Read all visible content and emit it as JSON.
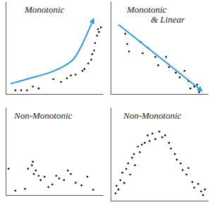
{
  "chart_data": [
    {
      "type": "scatter",
      "title": "Monotonic",
      "xlim": [
        0,
        100
      ],
      "ylim": [
        0,
        100
      ],
      "tick_labels": false,
      "series": [
        {
          "type": "scatter",
          "color": "#000000",
          "marker": "dot",
          "x": [
            10,
            16,
            22,
            28,
            34,
            49,
            57,
            63,
            67,
            72,
            79,
            81,
            85,
            88,
            89,
            91,
            92,
            94,
            96,
            95,
            98
          ],
          "values": [
            4,
            4,
            4,
            8,
            6,
            16,
            13,
            17,
            20,
            21,
            25,
            27,
            33,
            37,
            43,
            47,
            55,
            63,
            67,
            70,
            72
          ]
        },
        {
          "type": "line",
          "color": "#3399cc",
          "marker": "arrow",
          "x": [
            5,
            25,
            45,
            60,
            70,
            78,
            85,
            90
          ],
          "values": [
            11,
            17,
            23,
            30,
            38,
            52,
            68,
            80
          ]
        }
      ]
    },
    {
      "type": "scatter",
      "title": "Monotonic & Linear",
      "xlim": [
        0,
        100
      ],
      "ylim": [
        0,
        100
      ],
      "tick_labels": false,
      "series": [
        {
          "type": "scatter",
          "color": "#000000",
          "marker": "dot",
          "x": [
            15,
            17,
            19,
            31,
            33,
            38,
            46,
            49,
            57,
            60,
            67,
            71,
            76,
            80,
            86,
            91,
            89,
            82
          ],
          "values": [
            65,
            54,
            46,
            56,
            44,
            50,
            40,
            31,
            40,
            29,
            23,
            18,
            25,
            14,
            8,
            2,
            10,
            6
          ]
        },
        {
          "type": "line",
          "color": "#3399cc",
          "marker": "arrow",
          "x": [
            8,
            93
          ],
          "values": [
            75,
            4
          ]
        }
      ]
    },
    {
      "type": "scatter",
      "title": "Non-Monotonic",
      "xlim": [
        0,
        100
      ],
      "ylim": [
        0,
        100
      ],
      "tick_labels": false,
      "series": [
        {
          "type": "scatter",
          "color": "#000000",
          "marker": "dot",
          "x": [
            10,
            20,
            23,
            27,
            28,
            31,
            29,
            34,
            36,
            40,
            44,
            48,
            52,
            55,
            60,
            64,
            67,
            72,
            78,
            84,
            90,
            3
          ],
          "values": [
            5,
            7,
            30,
            34,
            38,
            28,
            24,
            22,
            17,
            21,
            9,
            12,
            22,
            19,
            17,
            28,
            24,
            14,
            11,
            21,
            6,
            30
          ]
        }
      ]
    },
    {
      "type": "scatter",
      "title": "Non-Monotonic",
      "xlim": [
        0,
        100
      ],
      "ylim": [
        0,
        100
      ],
      "tick_labels": false,
      "series": [
        {
          "type": "scatter",
          "color": "#000000",
          "marker": "dot",
          "x": [
            5,
            6,
            8,
            10,
            12,
            14,
            16,
            18,
            20,
            22,
            24,
            25,
            28,
            30,
            32,
            35,
            38,
            40,
            43,
            46,
            50,
            53,
            56,
            60,
            62,
            66,
            68,
            72,
            74,
            78,
            80,
            84,
            86,
            90,
            93,
            95,
            97
          ],
          "values": [
            8,
            16,
            12,
            22,
            30,
            19,
            34,
            40,
            28,
            46,
            50,
            38,
            58,
            52,
            60,
            62,
            70,
            64,
            72,
            66,
            74,
            68,
            70,
            62,
            56,
            50,
            44,
            40,
            33,
            28,
            35,
            20,
            14,
            18,
            10,
            6,
            12
          ]
        }
      ]
    }
  ]
}
